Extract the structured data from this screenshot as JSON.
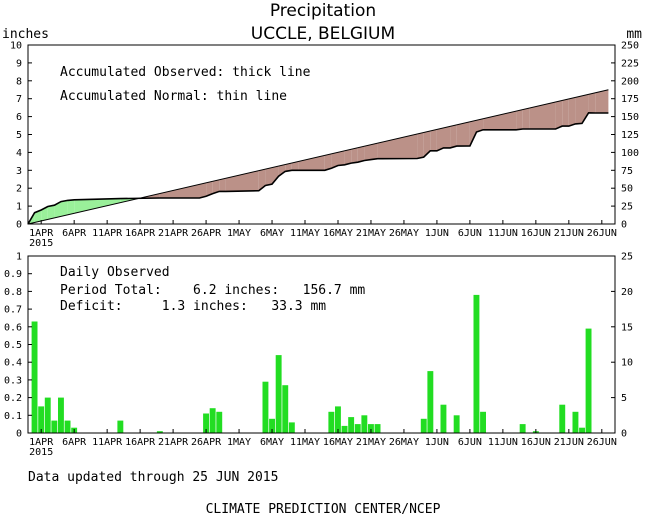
{
  "chart_data": [
    {
      "type": "area",
      "title": "Precipitation",
      "subtitle": "UCCLE, BELGIUM",
      "left_unit": "inches",
      "right_unit": "mm",
      "ylim": [
        0,
        10
      ],
      "ylim_right": [
        0,
        250
      ],
      "y_ticks": [
        "0",
        "1",
        "2",
        "3",
        "4",
        "5",
        "6",
        "7",
        "8",
        "9",
        "10"
      ],
      "y_ticks_right": [
        "0",
        "25",
        "50",
        "75",
        "100",
        "125",
        "150",
        "175",
        "200",
        "225",
        "250"
      ],
      "x_ticks": [
        "1APR",
        "6APR",
        "11APR",
        "16APR",
        "21APR",
        "26APR",
        "1MAY",
        "6MAY",
        "11MAY",
        "16MAY",
        "21MAY",
        "26MAY",
        "1JUN",
        "6JUN",
        "11JUN",
        "16JUN",
        "21JUN",
        "26JUN"
      ],
      "x_year_label": "2015",
      "x_start_day": -2,
      "x_end_day": 87,
      "annotations": [
        "Accumulated Observed: thick line",
        "Accumulated Normal: thin line"
      ],
      "observed_color": "#bb9188",
      "surplus_color": "#9af09a",
      "series": [
        {
          "name": "Accumulated Observed",
          "points": [
            [
              -2,
              0
            ],
            [
              -1,
              0.63
            ],
            [
              0,
              0.78
            ],
            [
              1,
              0.98
            ],
            [
              2,
              1.05
            ],
            [
              3,
              1.25
            ],
            [
              4,
              1.32
            ],
            [
              5,
              1.35
            ],
            [
              12,
              1.42
            ],
            [
              18,
              1.45
            ],
            [
              24,
              1.45
            ],
            [
              25,
              1.55
            ],
            [
              26,
              1.7
            ],
            [
              27,
              1.82
            ],
            [
              28,
              1.82
            ],
            [
              33,
              1.86
            ],
            [
              34,
              2.15
            ],
            [
              35,
              2.23
            ],
            [
              36,
              2.67
            ],
            [
              37,
              2.94
            ],
            [
              38,
              3.0
            ],
            [
              39,
              3.0
            ],
            [
              43,
              3.0
            ],
            [
              44,
              3.12
            ],
            [
              45,
              3.27
            ],
            [
              46,
              3.31
            ],
            [
              47,
              3.4
            ],
            [
              48,
              3.45
            ],
            [
              49,
              3.55
            ],
            [
              50,
              3.6
            ],
            [
              51,
              3.65
            ],
            [
              57,
              3.66
            ],
            [
              58,
              3.74
            ],
            [
              59,
              4.09
            ],
            [
              60,
              4.09
            ],
            [
              61,
              4.25
            ],
            [
              62,
              4.25
            ],
            [
              63,
              4.35
            ],
            [
              65,
              4.36
            ],
            [
              66,
              5.14
            ],
            [
              67,
              5.26
            ],
            [
              72,
              5.26
            ],
            [
              73,
              5.31
            ],
            [
              74,
              5.31
            ],
            [
              78,
              5.31
            ],
            [
              79,
              5.47
            ],
            [
              80,
              5.47
            ],
            [
              81,
              5.59
            ],
            [
              82,
              5.62
            ],
            [
              83,
              6.21
            ],
            [
              84,
              6.2
            ],
            [
              86,
              6.2
            ]
          ]
        },
        {
          "name": "Accumulated Normal",
          "points": [
            [
              -2,
              0
            ],
            [
              86,
              7.5
            ]
          ]
        }
      ]
    },
    {
      "type": "bar",
      "ylim": [
        0,
        1
      ],
      "ylim_right": [
        0,
        25
      ],
      "y_ticks": [
        "0",
        "0.1",
        "0.2",
        "0.3",
        "0.4",
        "0.5",
        "0.6",
        "0.7",
        "0.8",
        "0.9",
        "1"
      ],
      "y_ticks_right": [
        "0",
        "5",
        "10",
        "15",
        "20",
        "25"
      ],
      "x_ticks": [
        "1APR",
        "6APR",
        "11APR",
        "16APR",
        "21APR",
        "26APR",
        "1MAY",
        "6MAY",
        "11MAY",
        "16MAY",
        "21MAY",
        "26MAY",
        "1JUN",
        "6JUN",
        "11JUN",
        "16JUN",
        "21JUN",
        "26JUN"
      ],
      "x_year_label": "2015",
      "x_start_day": -2,
      "x_end_day": 87,
      "bar_color": "#22dd22",
      "annotations": [
        "Daily Observed",
        "Period Total:    6.2 inches:   156.7 mm",
        "Deficit:     1.3 inches:   33.3 mm"
      ],
      "series": [
        {
          "name": "Daily Observed",
          "points": [
            [
              -1,
              0.63
            ],
            [
              0,
              0.15
            ],
            [
              1,
              0.2
            ],
            [
              2,
              0.07
            ],
            [
              3,
              0.2
            ],
            [
              4,
              0.07
            ],
            [
              5,
              0.03
            ],
            [
              12,
              0.07
            ],
            [
              18,
              0.01
            ],
            [
              25,
              0.11
            ],
            [
              26,
              0.14
            ],
            [
              27,
              0.12
            ],
            [
              34,
              0.29
            ],
            [
              35,
              0.08
            ],
            [
              36,
              0.44
            ],
            [
              37,
              0.27
            ],
            [
              38,
              0.06
            ],
            [
              44,
              0.12
            ],
            [
              45,
              0.15
            ],
            [
              46,
              0.04
            ],
            [
              47,
              0.09
            ],
            [
              48,
              0.05
            ],
            [
              49,
              0.1
            ],
            [
              50,
              0.05
            ],
            [
              51,
              0.05
            ],
            [
              58,
              0.08
            ],
            [
              59,
              0.35
            ],
            [
              61,
              0.16
            ],
            [
              63,
              0.1
            ],
            [
              66,
              0.78
            ],
            [
              67,
              0.12
            ],
            [
              73,
              0.05
            ],
            [
              75,
              0.01
            ],
            [
              79,
              0.16
            ],
            [
              81,
              0.12
            ],
            [
              82,
              0.03
            ],
            [
              83,
              0.59
            ]
          ]
        }
      ]
    }
  ],
  "footer": {
    "updated": "Data updated through 25 JUN 2015",
    "credit": "CLIMATE PREDICTION CENTER/NCEP"
  }
}
